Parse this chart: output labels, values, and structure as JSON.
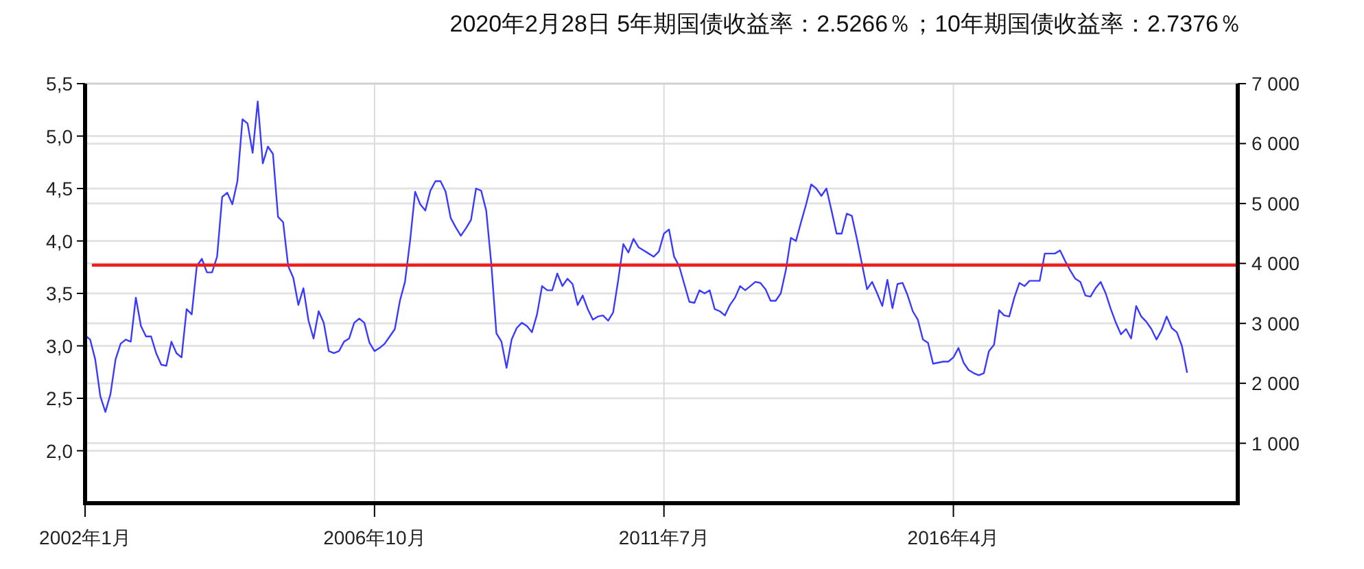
{
  "chart_data": {
    "type": "line",
    "title": "2020年2月28日 5年期国债收益率：2.5266％；10年期国债收益率：2.7376％",
    "xlim": [
      "2002-01",
      "2020-12"
    ],
    "xticks": [
      {
        "value": "2002-01",
        "label": "2002年1月"
      },
      {
        "value": "2006-10",
        "label": "2006年10月"
      },
      {
        "value": "2011-07",
        "label": "2011年7月"
      },
      {
        "value": "2016-04",
        "label": "2016年4月"
      }
    ],
    "ylim": [
      1.5,
      5.5
    ],
    "yticks": [
      {
        "value": 2,
        "label": "2,0"
      },
      {
        "value": 2.5,
        "label": "2,5"
      },
      {
        "value": 3,
        "label": "3,0"
      },
      {
        "value": 3.5,
        "label": "3,5"
      },
      {
        "value": 4,
        "label": "4,0"
      },
      {
        "value": 4.5,
        "label": "4,5"
      },
      {
        "value": 5,
        "label": "5,0"
      },
      {
        "value": 5.5,
        "label": "5,5"
      }
    ],
    "y2lim": [
      0,
      7000
    ],
    "y2ticks": [
      {
        "value": 1000,
        "label": "1 000"
      },
      {
        "value": 2000,
        "label": "2 000"
      },
      {
        "value": 3000,
        "label": "3 000"
      },
      {
        "value": 4000,
        "label": "4 000"
      },
      {
        "value": 5000,
        "label": "5 000"
      },
      {
        "value": 6000,
        "label": "6 000"
      },
      {
        "value": 7000,
        "label": "7 000"
      }
    ],
    "grid": true,
    "line_style": "solid",
    "ref_lines": [
      {
        "axis": "y",
        "value": 3.77,
        "color": "#ee1c1c"
      }
    ],
    "series": [
      {
        "color": "#3a3aff",
        "x": [
          "2002-01",
          "2002-02",
          "2002-03",
          "2002-04",
          "2002-05",
          "2002-06",
          "2002-07",
          "2002-08",
          "2002-09",
          "2002-10",
          "2002-11",
          "2002-12",
          "2003-01",
          "2003-02",
          "2003-03",
          "2003-04",
          "2003-05",
          "2003-06",
          "2003-07",
          "2003-08",
          "2003-09",
          "2003-10",
          "2003-11",
          "2003-12",
          "2004-01",
          "2004-02",
          "2004-03",
          "2004-04",
          "2004-05",
          "2004-06",
          "2004-07",
          "2004-08",
          "2004-09",
          "2004-10",
          "2004-11",
          "2004-12",
          "2005-01",
          "2005-02",
          "2005-03",
          "2005-04",
          "2005-05",
          "2005-06",
          "2005-07",
          "2005-08",
          "2005-09",
          "2005-10",
          "2005-11",
          "2005-12",
          "2006-01",
          "2006-02",
          "2006-03",
          "2006-04",
          "2006-05",
          "2006-06",
          "2006-07",
          "2006-08",
          "2006-09",
          "2006-10",
          "2006-11",
          "2006-12",
          "2007-01",
          "2007-02",
          "2007-03",
          "2007-04",
          "2007-05",
          "2007-06",
          "2007-07",
          "2007-08",
          "2007-09",
          "2007-10",
          "2007-11",
          "2007-12",
          "2008-01",
          "2008-02",
          "2008-03",
          "2008-04",
          "2008-05",
          "2008-06",
          "2008-07",
          "2008-08",
          "2008-09",
          "2008-10",
          "2008-11",
          "2008-12",
          "2009-01",
          "2009-02",
          "2009-03",
          "2009-04",
          "2009-05",
          "2009-06",
          "2009-07",
          "2009-08",
          "2009-09",
          "2009-10",
          "2009-11",
          "2009-12",
          "2010-01",
          "2010-02",
          "2010-03",
          "2010-04",
          "2010-05",
          "2010-06",
          "2010-07",
          "2010-08",
          "2010-09",
          "2010-10",
          "2010-11",
          "2010-12",
          "2011-01",
          "2011-02",
          "2011-03",
          "2011-04",
          "2011-05",
          "2011-06",
          "2011-07",
          "2011-08",
          "2011-09",
          "2011-10",
          "2011-11",
          "2011-12",
          "2012-01",
          "2012-02",
          "2012-03",
          "2012-04",
          "2012-05",
          "2012-06",
          "2012-07",
          "2012-08",
          "2012-09",
          "2012-10",
          "2012-11",
          "2012-12",
          "2013-01",
          "2013-02",
          "2013-03",
          "2013-04",
          "2013-05",
          "2013-06",
          "2013-07",
          "2013-08",
          "2013-09",
          "2013-10",
          "2013-11",
          "2013-12",
          "2014-01",
          "2014-02",
          "2014-03",
          "2014-04",
          "2014-05",
          "2014-06",
          "2014-07",
          "2014-08",
          "2014-09",
          "2014-10",
          "2014-11",
          "2014-12",
          "2015-01",
          "2015-02",
          "2015-03",
          "2015-04",
          "2015-05",
          "2015-06",
          "2015-07",
          "2015-08",
          "2015-09",
          "2015-10",
          "2015-11",
          "2015-12",
          "2016-01",
          "2016-02",
          "2016-03",
          "2016-04",
          "2016-05",
          "2016-06",
          "2016-07",
          "2016-08",
          "2016-09",
          "2016-10",
          "2016-11",
          "2016-12",
          "2017-01",
          "2017-02",
          "2017-03",
          "2017-04",
          "2017-05",
          "2017-06",
          "2017-07",
          "2017-08",
          "2017-09",
          "2017-10",
          "2017-11",
          "2017-12",
          "2018-01",
          "2018-02",
          "2018-03",
          "2018-04",
          "2018-05",
          "2018-06",
          "2018-07",
          "2018-08",
          "2018-09",
          "2018-10",
          "2018-11",
          "2018-12",
          "2019-01",
          "2019-02",
          "2019-03",
          "2019-04",
          "2019-05",
          "2019-06",
          "2019-07",
          "2019-08",
          "2019-09",
          "2019-10",
          "2019-11",
          "2019-12",
          "2020-01",
          "2020-02"
        ],
        "values": [
          3.1,
          3.06,
          2.87,
          2.52,
          2.37,
          2.54,
          2.87,
          3.02,
          3.06,
          3.04,
          3.46,
          3.19,
          3.09,
          3.09,
          2.93,
          2.82,
          2.81,
          3.04,
          2.93,
          2.89,
          3.35,
          3.3,
          3.76,
          3.83,
          3.7,
          3.7,
          3.85,
          4.42,
          4.46,
          4.35,
          4.57,
          5.16,
          5.12,
          4.84,
          5.33,
          4.74,
          4.9,
          4.83,
          4.23,
          4.18,
          3.76,
          3.65,
          3.39,
          3.55,
          3.24,
          3.07,
          3.33,
          3.22,
          2.95,
          2.93,
          2.95,
          3.04,
          3.07,
          3.22,
          3.26,
          3.22,
          3.03,
          2.95,
          2.98,
          3.02,
          3.09,
          3.16,
          3.43,
          3.61,
          4.0,
          4.47,
          4.35,
          4.29,
          4.48,
          4.57,
          4.57,
          4.47,
          4.22,
          4.13,
          4.05,
          4.12,
          4.2,
          4.5,
          4.48,
          4.29,
          3.78,
          3.12,
          3.04,
          2.79,
          3.06,
          3.17,
          3.22,
          3.19,
          3.13,
          3.3,
          3.57,
          3.53,
          3.53,
          3.69,
          3.57,
          3.64,
          3.59,
          3.39,
          3.48,
          3.35,
          3.25,
          3.28,
          3.29,
          3.24,
          3.32,
          3.63,
          3.97,
          3.89,
          4.02,
          3.94,
          3.91,
          3.88,
          3.85,
          3.9,
          4.07,
          4.11,
          3.85,
          3.76,
          3.59,
          3.42,
          3.41,
          3.53,
          3.5,
          3.53,
          3.35,
          3.33,
          3.29,
          3.39,
          3.46,
          3.57,
          3.53,
          3.57,
          3.61,
          3.6,
          3.54,
          3.43,
          3.43,
          3.5,
          3.72,
          4.03,
          4.0,
          4.18,
          4.35,
          4.54,
          4.5,
          4.43,
          4.5,
          4.29,
          4.07,
          4.07,
          4.26,
          4.24,
          4.02,
          3.78,
          3.54,
          3.61,
          3.5,
          3.38,
          3.63,
          3.36,
          3.59,
          3.6,
          3.48,
          3.33,
          3.25,
          3.06,
          3.03,
          2.83,
          2.84,
          2.85,
          2.85,
          2.89,
          2.98,
          2.84,
          2.77,
          2.74,
          2.72,
          2.74,
          2.95,
          3.01,
          3.34,
          3.29,
          3.28,
          3.46,
          3.6,
          3.57,
          3.62,
          3.62,
          3.62,
          3.88,
          3.88,
          3.88,
          3.91,
          3.81,
          3.72,
          3.64,
          3.61,
          3.48,
          3.47,
          3.55,
          3.61,
          3.5,
          3.35,
          3.22,
          3.11,
          3.16,
          3.07,
          3.38,
          3.28,
          3.23,
          3.16,
          3.06,
          3.15,
          3.28,
          3.17,
          3.13,
          3.0,
          2.75
        ]
      }
    ]
  }
}
